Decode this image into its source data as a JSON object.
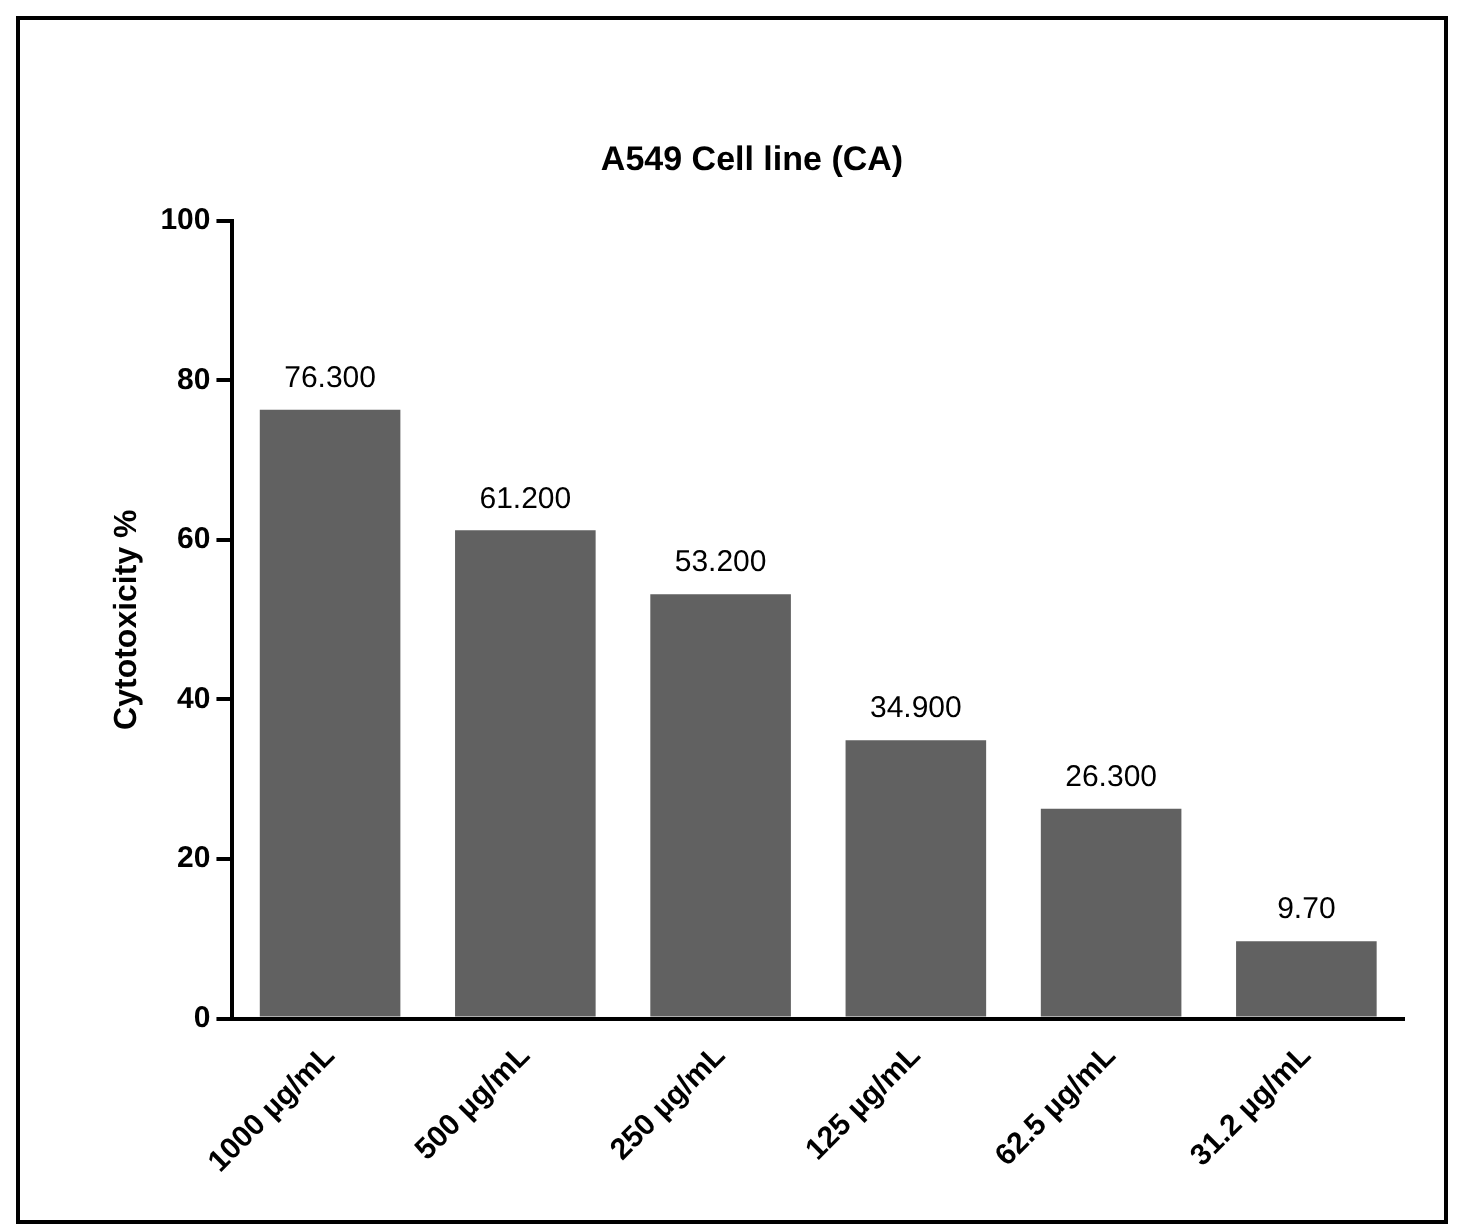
{
  "chart_data": {
    "type": "bar",
    "title": "A549 Cell line (CA)",
    "ylabel": "Cytotoxicity %",
    "categories": [
      "1000 µg/mL",
      "500 µg/mL",
      "250 µg/mL",
      "125 µg/mL",
      "62.5 µg/mL",
      "31.2 µg/mL"
    ],
    "values": [
      76.3,
      61.2,
      53.2,
      34.9,
      26.3,
      9.7
    ],
    "value_labels": [
      "76.300",
      "61.200",
      "53.200",
      "34.900",
      "26.300",
      "9.70"
    ],
    "color": "#616161",
    "ylim": [
      0,
      100
    ],
    "yticks": [
      0,
      20,
      40,
      60,
      80,
      100
    ],
    "grid": false,
    "legend": false
  }
}
